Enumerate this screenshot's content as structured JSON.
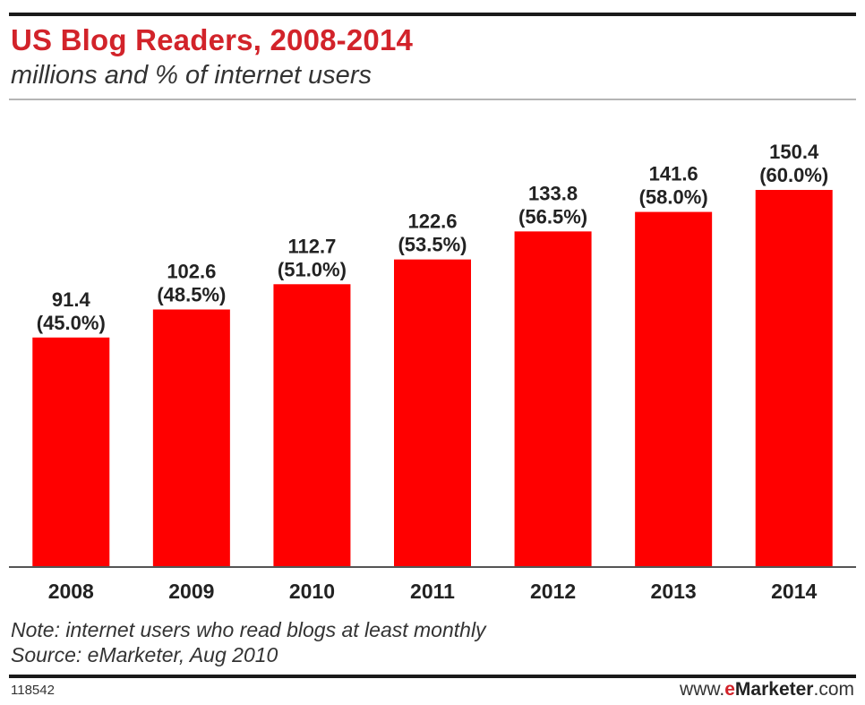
{
  "header": {
    "title": "US Blog Readers, 2008-2014",
    "subtitle": "millions and % of internet users"
  },
  "footer": {
    "note": "Note: internet users who read blogs at least monthly",
    "source": "Source: eMarketer, Aug 2010",
    "chart_id": "118542",
    "brand_prefix": "www.",
    "brand_e": "e",
    "brand_name": "Marketer",
    "brand_suffix": ".com"
  },
  "colors": {
    "bar": "#ff0000",
    "title": "#d2232a"
  },
  "chart_data": {
    "type": "bar",
    "title": "US Blog Readers, 2008-2014",
    "subtitle": "millions and % of internet users",
    "xlabel": "",
    "ylabel": "",
    "categories": [
      "2008",
      "2009",
      "2010",
      "2011",
      "2012",
      "2013",
      "2014"
    ],
    "values": [
      91.4,
      102.6,
      112.7,
      122.6,
      133.8,
      141.6,
      150.4
    ],
    "percent_labels": [
      "(45.0%)",
      "(48.5%)",
      "(51.0%)",
      "(53.5%)",
      "(56.5%)",
      "(58.0%)",
      "(60.0%)"
    ],
    "value_labels": [
      "91.4",
      "102.6",
      "112.7",
      "122.6",
      "133.8",
      "141.6",
      "150.4"
    ],
    "ylim": [
      0,
      150.4
    ],
    "grid": false,
    "legend": "none"
  }
}
